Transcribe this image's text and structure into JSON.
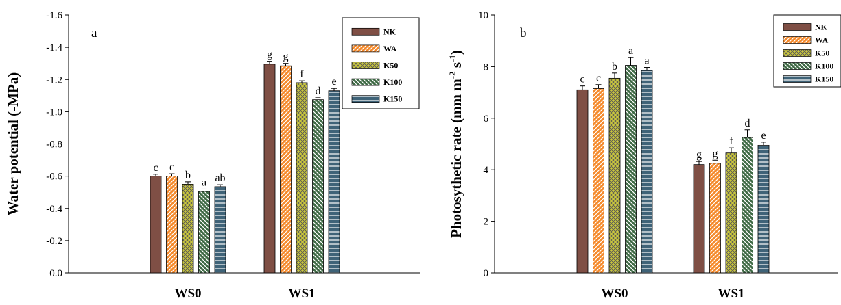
{
  "series_legend": [
    {
      "name": "NK",
      "color": "#7f4f45",
      "pattern": "solid"
    },
    {
      "name": "WA",
      "color": "#f58a2c",
      "pattern": "diagonal"
    },
    {
      "name": "K50",
      "color": "#c9c63e",
      "pattern": "crosshatch"
    },
    {
      "name": "K100",
      "color": "#3f6a45",
      "pattern": "diagonal-reverse"
    },
    {
      "name": "K150",
      "color": "#3f6378",
      "pattern": "horizontal"
    }
  ],
  "chart_data": [
    {
      "type": "bar",
      "panel_label": "a",
      "ylabel": "Water potential (-MPa)",
      "categories": [
        "WS0",
        "WS1"
      ],
      "ylim": [
        0,
        -1.6
      ],
      "yticks": [
        "0.0",
        "-0.2",
        "-0.4",
        "-0.6",
        "-0.8",
        "-1.0",
        "-1.2",
        "-1.4",
        "-1.6"
      ],
      "series": [
        {
          "name": "NK",
          "values": [
            -0.6,
            -1.295
          ],
          "errors": [
            0.012,
            0.018
          ],
          "letters": [
            "c",
            "g"
          ]
        },
        {
          "name": "WA",
          "values": [
            -0.6,
            -1.285
          ],
          "errors": [
            0.015,
            0.015
          ],
          "letters": [
            "c",
            "g"
          ]
        },
        {
          "name": "K50",
          "values": [
            -0.55,
            -1.18
          ],
          "errors": [
            0.015,
            0.012
          ],
          "letters": [
            "b",
            "f"
          ]
        },
        {
          "name": "K100",
          "values": [
            -0.505,
            -1.075
          ],
          "errors": [
            0.015,
            0.012
          ],
          "letters": [
            "a",
            "d"
          ]
        },
        {
          "name": "K150",
          "values": [
            -0.535,
            -1.13
          ],
          "errors": [
            0.012,
            0.015
          ],
          "letters": [
            "ab",
            "e"
          ]
        }
      ],
      "grid": false,
      "legend_position": "top-right"
    },
    {
      "type": "bar",
      "panel_label": "b",
      "ylabel": "Photosythetic rate (mm m",
      "ylabel_sup1": "-2",
      "ylabel_mid": " s",
      "ylabel_sup2": "-1",
      "ylabel_end": ")",
      "categories": [
        "WS0",
        "WS1"
      ],
      "ylim": [
        0,
        10
      ],
      "yticks": [
        "0",
        "2",
        "4",
        "6",
        "8",
        "10"
      ],
      "series": [
        {
          "name": "NK",
          "values": [
            7.1,
            4.2
          ],
          "errors": [
            0.15,
            0.12
          ],
          "letters": [
            "c",
            "g"
          ]
        },
        {
          "name": "WA",
          "values": [
            7.15,
            4.25
          ],
          "errors": [
            0.15,
            0.12
          ],
          "letters": [
            "c",
            "g"
          ]
        },
        {
          "name": "K50",
          "values": [
            7.55,
            4.65
          ],
          "errors": [
            0.2,
            0.2
          ],
          "letters": [
            "b",
            "f"
          ]
        },
        {
          "name": "K100",
          "values": [
            8.05,
            5.25
          ],
          "errors": [
            0.3,
            0.3
          ],
          "letters": [
            "a",
            "d"
          ]
        },
        {
          "name": "K150",
          "values": [
            7.85,
            4.95
          ],
          "errors": [
            0.12,
            0.12
          ],
          "letters": [
            "a",
            "e"
          ]
        }
      ],
      "grid": false,
      "legend_position": "top-right"
    }
  ]
}
